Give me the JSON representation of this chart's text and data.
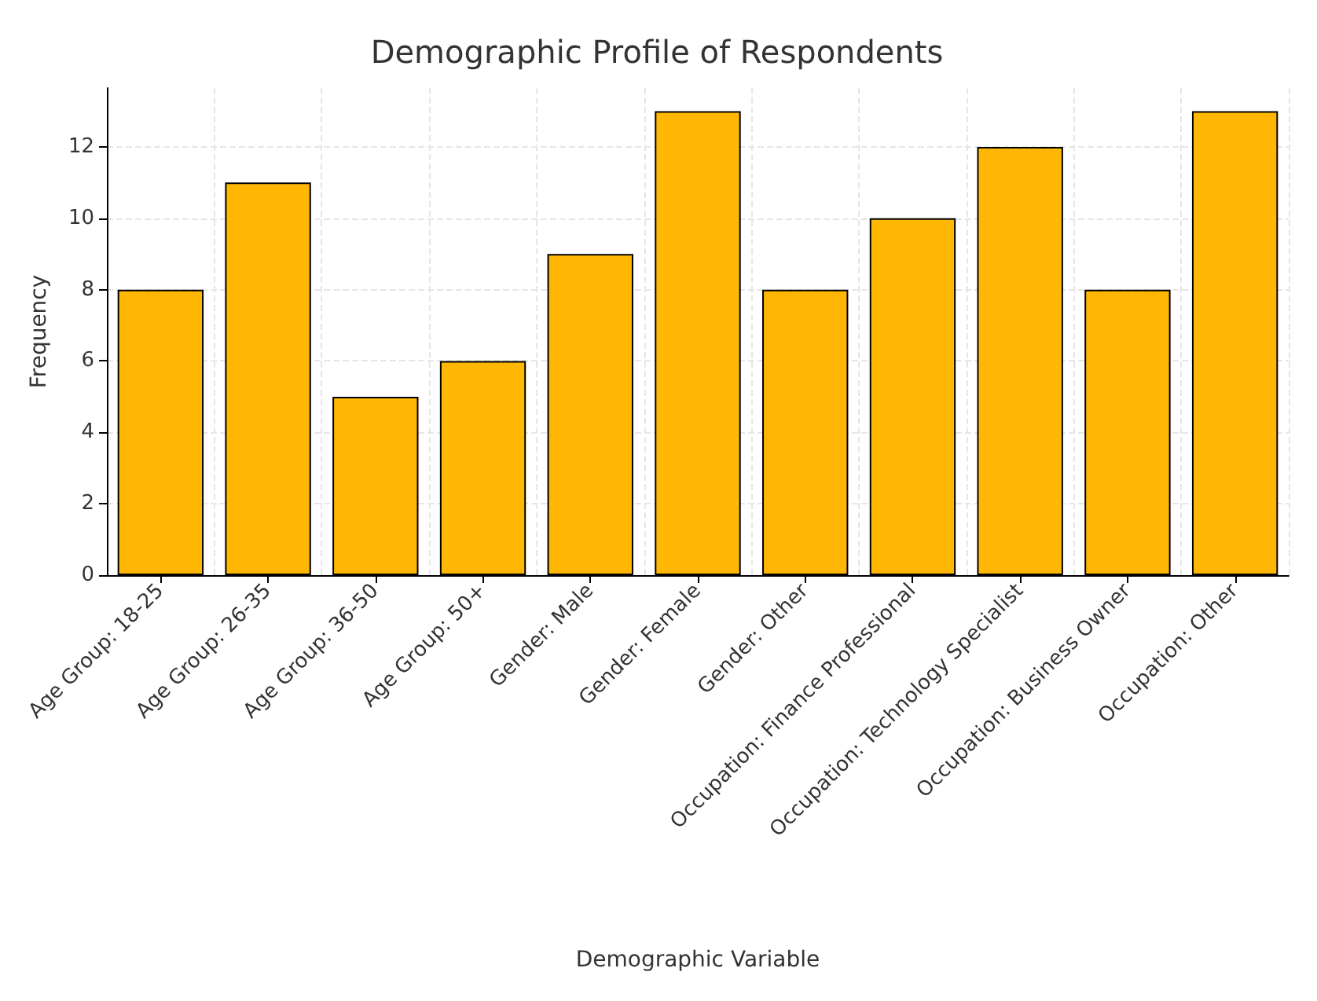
{
  "chart_data": {
    "type": "bar",
    "title": "Demographic Profile of Respondents",
    "xlabel": "Demographic Variable",
    "ylabel": "Frequency",
    "categories": [
      "Age Group: 18-25",
      "Age Group: 26-35",
      "Age Group: 36-50",
      "Age Group: 50+",
      "Gender: Male",
      "Gender: Female",
      "Gender: Other",
      "Occupation: Finance Professional",
      "Occupation: Technology Specialist",
      "Occupation: Business Owner",
      "Occupation: Other"
    ],
    "values": [
      8,
      11,
      5,
      6,
      9,
      13,
      8,
      10,
      12,
      8,
      13
    ],
    "color": "#ffb703",
    "ylim": [
      0,
      13.65
    ],
    "yticks": [
      0,
      2,
      4,
      6,
      8,
      10,
      12
    ],
    "grid": true
  }
}
